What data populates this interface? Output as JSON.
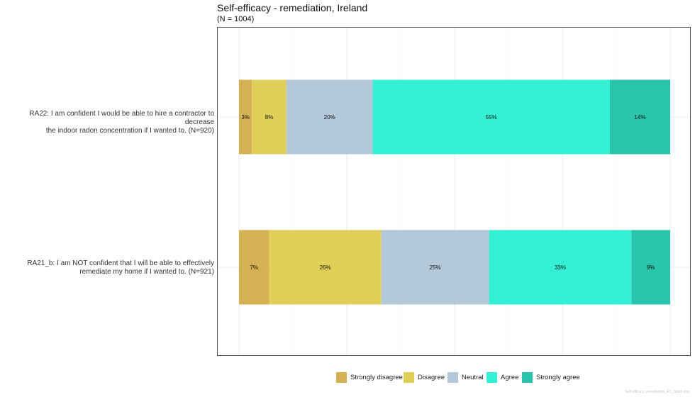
{
  "chart_data": {
    "type": "bar",
    "orientation": "horizontal",
    "stacked": true,
    "title": "Self-efficacy - remediation, Ireland",
    "subtitle": "(N = 1004)",
    "xlabel": "",
    "ylabel": "",
    "xlim": [
      0,
      100
    ],
    "grid": true,
    "legend_position": "bottom",
    "categories": [
      "RA22: I am confident I would be able to hire a contractor to decrease the indoor radon concentration if I wanted to. (N=920)",
      "RA21_b: I am NOT confident that I will be able to effectively remediate my home if I wanted to. (N=921)"
    ],
    "category_lines": [
      [
        "RA22: I am confident I would be able to hire a contractor to decrease",
        "the indoor radon concentration if I wanted to. (N=920)"
      ],
      [
        "RA21_b: I am NOT confident that I will be able to effectively",
        "remediate my home if I wanted to. (N=921)"
      ]
    ],
    "series": [
      {
        "name": "Strongly disagree",
        "color": "#d4b254",
        "values": [
          3,
          7
        ],
        "labels": [
          "3%",
          "7%"
        ]
      },
      {
        "name": "Disagree",
        "color": "#e1d058",
        "values": [
          8,
          26
        ],
        "labels": [
          "8%",
          "26%"
        ]
      },
      {
        "name": "Neutral",
        "color": "#b3c8d8",
        "values": [
          20,
          25
        ],
        "labels": [
          "20%",
          "25%"
        ]
      },
      {
        "name": "Agree",
        "color": "#33f0d5",
        "values": [
          55,
          33
        ],
        "labels": [
          "55%",
          "33%"
        ]
      },
      {
        "name": "Strongly agree",
        "color": "#28c4ac",
        "values": [
          14,
          9
        ],
        "labels": [
          "14%",
          "9%"
        ]
      }
    ]
  },
  "watermark": "Self-efficacy_remediation_RS_Stitch.png"
}
